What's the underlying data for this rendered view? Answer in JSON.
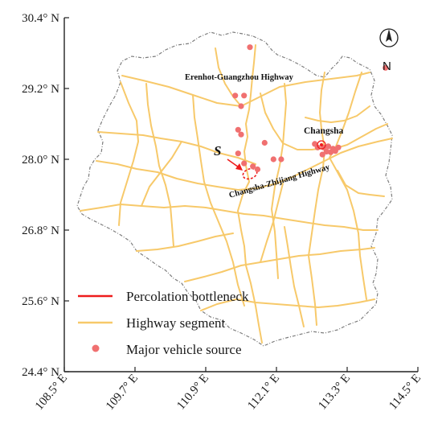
{
  "map": {
    "y_ticks": [
      "30.4° N",
      "29.2° N",
      "28.0° N",
      "26.8° N",
      "25.6° N",
      "24.4° N"
    ],
    "x_ticks": [
      "108.5° E",
      "109.7° E",
      "110.9° E",
      "112.1° E",
      "113.3° E",
      "114.5° E"
    ],
    "north_label": "N",
    "highway_labels": {
      "erenhot": "Erenhot-Guangzhou Highway",
      "changsha_zhijiang": "Changsha-Zhijiang Highway"
    },
    "city_label": "Changsha",
    "bottleneck_label": "S",
    "colors": {
      "highway": "#f7c96a",
      "bottleneck": "#ee1c1c",
      "source": "#f07070",
      "border": "#7d7d7d",
      "axis": "#222222"
    },
    "sources": [
      {
        "lon": 111.65,
        "lat": 29.9
      },
      {
        "lon": 113.95,
        "lat": 29.55
      },
      {
        "lon": 111.4,
        "lat": 29.08
      },
      {
        "lon": 111.55,
        "lat": 29.08
      },
      {
        "lon": 111.5,
        "lat": 28.9
      },
      {
        "lon": 111.45,
        "lat": 28.5
      },
      {
        "lon": 111.5,
        "lat": 28.42
      },
      {
        "lon": 111.9,
        "lat": 28.28
      },
      {
        "lon": 111.45,
        "lat": 28.1
      },
      {
        "lon": 111.55,
        "lat": 27.93
      },
      {
        "lon": 111.7,
        "lat": 27.88
      },
      {
        "lon": 111.78,
        "lat": 27.83
      },
      {
        "lon": 112.05,
        "lat": 28.0
      },
      {
        "lon": 112.18,
        "lat": 28.0
      },
      {
        "lon": 112.75,
        "lat": 28.26
      },
      {
        "lon": 112.8,
        "lat": 28.2
      },
      {
        "lon": 112.9,
        "lat": 28.2
      },
      {
        "lon": 112.98,
        "lat": 28.22
      },
      {
        "lon": 113.06,
        "lat": 28.18
      },
      {
        "lon": 113.02,
        "lat": 28.12
      },
      {
        "lon": 112.95,
        "lat": 28.13
      },
      {
        "lon": 112.88,
        "lat": 28.08
      },
      {
        "lon": 113.1,
        "lat": 28.14
      },
      {
        "lon": 113.15,
        "lat": 28.2
      }
    ]
  },
  "legend": {
    "bottleneck": "Percolation bottleneck",
    "highway": "Highway segment",
    "source": "Major vehicle source"
  }
}
